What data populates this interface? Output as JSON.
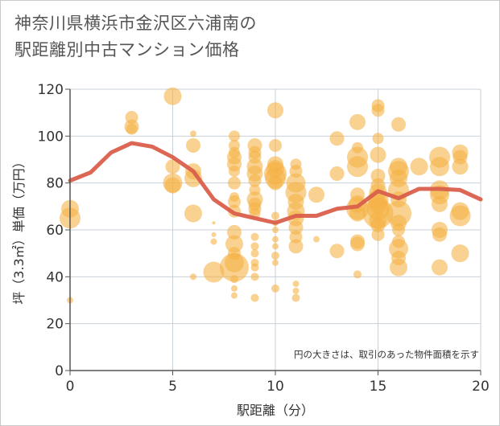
{
  "title_line1": "神奈川県横浜市金沢区六浦南の",
  "title_line2": "駅距離別中古マンション価格",
  "note": "円の大きさは、取引のあった物件面積を示す",
  "colors": {
    "bubble": "#f5b246",
    "line": "#d95f4b",
    "grid": "#c8d0d8",
    "axis": "#555555"
  },
  "chart_data": {
    "type": "scatter",
    "xlabel": "駅距離（分）",
    "ylabel": "坪（3.3㎡）単価（万円）",
    "xlim": [
      0,
      20
    ],
    "ylim": [
      0,
      120
    ],
    "x_ticks": [
      "0",
      "5",
      "10",
      "15",
      "20"
    ],
    "y_ticks": [
      "0",
      "20",
      "40",
      "60",
      "80",
      "100",
      "120"
    ],
    "grid": true,
    "bubbles": [
      [
        0,
        30,
        4
      ],
      [
        0,
        65,
        13
      ],
      [
        0,
        69,
        11
      ],
      [
        3,
        108,
        8
      ],
      [
        3,
        104,
        9
      ],
      [
        3,
        103,
        7
      ],
      [
        5,
        117,
        11
      ],
      [
        5,
        87,
        9
      ],
      [
        5,
        80,
        12
      ],
      [
        5,
        79,
        10
      ],
      [
        6,
        101,
        4
      ],
      [
        6,
        96,
        9
      ],
      [
        6,
        85,
        10
      ],
      [
        6,
        82,
        11
      ],
      [
        6,
        67,
        11
      ],
      [
        6,
        40,
        4
      ],
      [
        7,
        63,
        2
      ],
      [
        7,
        58,
        3
      ],
      [
        7,
        55,
        4
      ],
      [
        7,
        42,
        13
      ],
      [
        8,
        100,
        7
      ],
      [
        8,
        96,
        7
      ],
      [
        8,
        93,
        7
      ],
      [
        8,
        91,
        9
      ],
      [
        8,
        88,
        9
      ],
      [
        8,
        85,
        7
      ],
      [
        8,
        80,
        8
      ],
      [
        8,
        74,
        6
      ],
      [
        8,
        72,
        8
      ],
      [
        8,
        68,
        8
      ],
      [
        8,
        59,
        9
      ],
      [
        8,
        54,
        11
      ],
      [
        8,
        50,
        8
      ],
      [
        8,
        46,
        12
      ],
      [
        8,
        44,
        18
      ],
      [
        8,
        39,
        5
      ],
      [
        8,
        35,
        4
      ],
      [
        8,
        32,
        4
      ],
      [
        9,
        96,
        9
      ],
      [
        9,
        93,
        8
      ],
      [
        9,
        91,
        8
      ],
      [
        9,
        87,
        10
      ],
      [
        9,
        84,
        10
      ],
      [
        9,
        81,
        8
      ],
      [
        9,
        77,
        7
      ],
      [
        9,
        73,
        10
      ],
      [
        9,
        71,
        8
      ],
      [
        9,
        69,
        8
      ],
      [
        9,
        67,
        7
      ],
      [
        9,
        57,
        5
      ],
      [
        9,
        53,
        5
      ],
      [
        9,
        50,
        5
      ],
      [
        9,
        46,
        5
      ],
      [
        9,
        44,
        5
      ],
      [
        9,
        40,
        5
      ],
      [
        9,
        31,
        5
      ],
      [
        10,
        111,
        10
      ],
      [
        10,
        96,
        8
      ],
      [
        10,
        88,
        10
      ],
      [
        10,
        86,
        11
      ],
      [
        10,
        84,
        14
      ],
      [
        10,
        82,
        13
      ],
      [
        10,
        80,
        9
      ],
      [
        10,
        66,
        5
      ],
      [
        10,
        63,
        4
      ],
      [
        10,
        60,
        4
      ],
      [
        10,
        56,
        4
      ],
      [
        10,
        53,
        4
      ],
      [
        10,
        49,
        5
      ],
      [
        10,
        46,
        4
      ],
      [
        10,
        35,
        5
      ],
      [
        11,
        88,
        7
      ],
      [
        11,
        85,
        8
      ],
      [
        11,
        80,
        12
      ],
      [
        11,
        76,
        13
      ],
      [
        11,
        72,
        10
      ],
      [
        11,
        68,
        11
      ],
      [
        11,
        65,
        10
      ],
      [
        11,
        61,
        9
      ],
      [
        11,
        57,
        8
      ],
      [
        11,
        53,
        9
      ],
      [
        11,
        37,
        4
      ],
      [
        11,
        34,
        4
      ],
      [
        11,
        31,
        5
      ],
      [
        12,
        75,
        10
      ],
      [
        12,
        56,
        4
      ],
      [
        13,
        99,
        9
      ],
      [
        13,
        84,
        9
      ],
      [
        13,
        51,
        9
      ],
      [
        14,
        106,
        10
      ],
      [
        14,
        95,
        7
      ],
      [
        14,
        91,
        13
      ],
      [
        14,
        87,
        13
      ],
      [
        14,
        75,
        9
      ],
      [
        14,
        71,
        11
      ],
      [
        14,
        69,
        14
      ],
      [
        14,
        67,
        10
      ],
      [
        14,
        55,
        9
      ],
      [
        14,
        54,
        9
      ],
      [
        14,
        41,
        5
      ],
      [
        15,
        113,
        8
      ],
      [
        15,
        111,
        8
      ],
      [
        15,
        99,
        7
      ],
      [
        15,
        92,
        10
      ],
      [
        15,
        83,
        9
      ],
      [
        15,
        79,
        9
      ],
      [
        15,
        76,
        11
      ],
      [
        15,
        73,
        13
      ],
      [
        15,
        71,
        12
      ],
      [
        15,
        69,
        14
      ],
      [
        15,
        67,
        19
      ],
      [
        15,
        64,
        11
      ],
      [
        15,
        62,
        9
      ],
      [
        15,
        58,
        8
      ],
      [
        16,
        105,
        9
      ],
      [
        16,
        87,
        11
      ],
      [
        16,
        85,
        13
      ],
      [
        16,
        82,
        11
      ],
      [
        16,
        77,
        13
      ],
      [
        16,
        73,
        10
      ],
      [
        16,
        67,
        16
      ],
      [
        16,
        63,
        10
      ],
      [
        16,
        60,
        8
      ],
      [
        16,
        55,
        8
      ],
      [
        16,
        52,
        12
      ],
      [
        16,
        48,
        9
      ],
      [
        16,
        44,
        11
      ],
      [
        17,
        87,
        11
      ],
      [
        18,
        91,
        13
      ],
      [
        18,
        87,
        12
      ],
      [
        18,
        77,
        12
      ],
      [
        18,
        75,
        12
      ],
      [
        18,
        71,
        10
      ],
      [
        18,
        60,
        10
      ],
      [
        18,
        58,
        9
      ],
      [
        18,
        44,
        10
      ],
      [
        19,
        93,
        10
      ],
      [
        19,
        91,
        9
      ],
      [
        19,
        87,
        10
      ],
      [
        19,
        68,
        11
      ],
      [
        19,
        66,
        13
      ],
      [
        19,
        50,
        11
      ]
    ],
    "trend_x": [
      0,
      1,
      2,
      3,
      4,
      5,
      6,
      7,
      8,
      9,
      10,
      11,
      12,
      13,
      14,
      15,
      16,
      17,
      18,
      19,
      20
    ],
    "trend_y": [
      81,
      84.5,
      93,
      97,
      95.5,
      91,
      85,
      73,
      67,
      65,
      63,
      66,
      66,
      69,
      70,
      76.5,
      73.5,
      77.5,
      77.5,
      77,
      73
    ]
  }
}
